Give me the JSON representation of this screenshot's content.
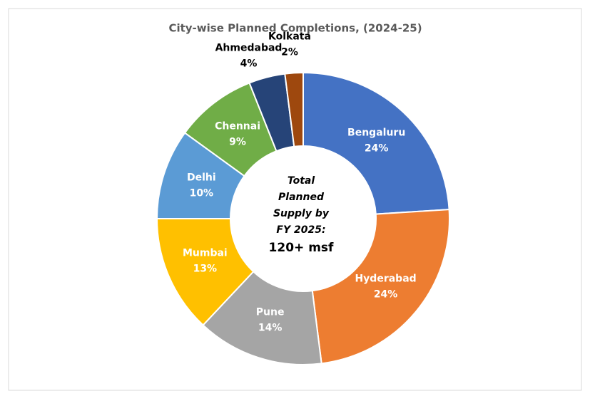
{
  "chart_data": {
    "type": "donut",
    "title": "City-wise Planned Completions,  (2024-25)",
    "categories": [
      "Bengaluru",
      "Hyderabad",
      "Pune",
      "Mumbai",
      "Delhi",
      "Chennai",
      "Ahmedabad",
      "Kolkata"
    ],
    "values": [
      24,
      24,
      14,
      13,
      10,
      9,
      4,
      2
    ],
    "value_labels": [
      "24%",
      "24%",
      "14%",
      "13%",
      "10%",
      "9%",
      "4%",
      "2%"
    ],
    "colors": [
      "#4472c4",
      "#ed7d31",
      "#a5a5a5",
      "#ffc000",
      "#5b9bd5",
      "#70ad47",
      "#264478",
      "#9e480e"
    ],
    "center_label": [
      "Total",
      "Planned",
      "Supply by",
      "FY 2025:"
    ],
    "center_value": "120+ msf"
  }
}
